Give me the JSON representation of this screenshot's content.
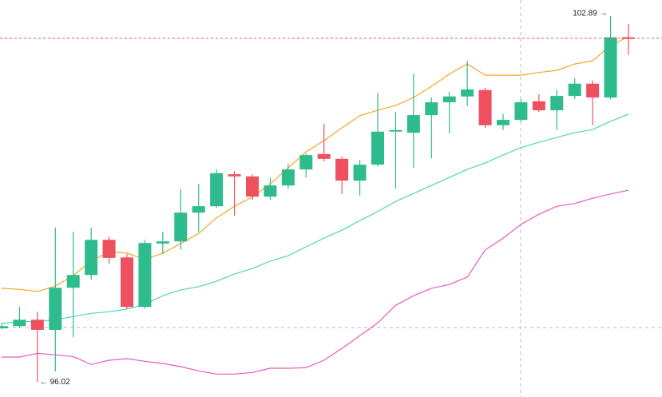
{
  "chart_data": {
    "type": "candlestick",
    "ylim": [
      95.74,
      103.19
    ],
    "up_color": "#2ebb8d",
    "down_color": "#ef5060",
    "open": [
      97.03,
      97.07,
      97.19,
      97.0,
      97.79,
      98.03,
      98.69,
      98.36,
      97.43,
      98.62,
      98.66,
      99.2,
      99.32,
      99.92,
      99.88,
      99.5,
      99.71,
      100.01,
      100.3,
      100.21,
      99.8,
      100.1,
      100.72,
      100.7,
      101.03,
      101.27,
      101.38,
      101.5,
      100.84,
      100.94,
      101.29,
      101.12,
      101.39,
      101.62,
      101.36,
      102.49
    ],
    "high": [
      97.12,
      97.43,
      97.34,
      98.92,
      98.84,
      98.92,
      98.75,
      98.42,
      98.69,
      98.84,
      99.64,
      99.74,
      100.01,
      99.98,
      99.92,
      99.86,
      100.12,
      100.31,
      100.87,
      100.25,
      100.19,
      101.45,
      101.09,
      101.81,
      101.36,
      101.47,
      102.05,
      101.54,
      101.05,
      101.33,
      101.42,
      101.5,
      101.72,
      101.68,
      102.89,
      102.74
    ],
    "low": [
      97.01,
      97.04,
      96.02,
      96.22,
      96.86,
      97.94,
      98.24,
      97.39,
      97.4,
      98.42,
      98.51,
      98.84,
      99.29,
      99.14,
      99.44,
      99.44,
      99.65,
      99.86,
      100.16,
      99.55,
      99.52,
      100.07,
      99.65,
      100.04,
      100.22,
      100.69,
      101.2,
      100.79,
      100.75,
      100.91,
      101.09,
      100.75,
      101.33,
      100.84,
      101.33,
      102.16
    ],
    "close": [
      97.07,
      97.19,
      97.0,
      97.79,
      98.03,
      98.69,
      98.35,
      97.43,
      98.63,
      98.66,
      99.2,
      99.32,
      99.94,
      99.88,
      99.5,
      99.71,
      100.01,
      100.28,
      100.21,
      99.8,
      100.1,
      100.72,
      100.75,
      101.03,
      101.27,
      101.38,
      101.51,
      100.84,
      100.94,
      101.27,
      101.12,
      101.39,
      101.62,
      101.36,
      102.49,
      102.47
    ],
    "overlays": [
      {
        "color": "#f5a623",
        "values": [
          97.78,
          97.76,
          97.72,
          97.82,
          98.02,
          98.29,
          98.47,
          98.44,
          98.32,
          98.44,
          98.62,
          98.81,
          99.1,
          99.32,
          99.49,
          99.74,
          100.04,
          100.34,
          100.55,
          100.79,
          101.02,
          101.12,
          101.21,
          101.36,
          101.57,
          101.8,
          101.99,
          101.78,
          101.78,
          101.78,
          101.83,
          101.87,
          101.99,
          102.05,
          102.34,
          102.5
        ]
      },
      {
        "color": "#4fd6b8",
        "values": [
          97.12,
          97.15,
          97.16,
          97.19,
          97.25,
          97.31,
          97.34,
          97.39,
          97.48,
          97.64,
          97.75,
          97.81,
          97.91,
          98.05,
          98.15,
          98.29,
          98.39,
          98.56,
          98.72,
          98.87,
          99.05,
          99.22,
          99.41,
          99.56,
          99.71,
          99.86,
          100.01,
          100.13,
          100.28,
          100.42,
          100.52,
          100.61,
          100.7,
          100.76,
          100.91,
          101.05
        ]
      },
      {
        "color": "#e45bbd",
        "values": [
          96.49,
          96.49,
          96.56,
          96.53,
          96.5,
          96.35,
          96.43,
          96.46,
          96.41,
          96.37,
          96.31,
          96.23,
          96.17,
          96.17,
          96.2,
          96.28,
          96.28,
          96.29,
          96.43,
          96.65,
          96.89,
          97.13,
          97.46,
          97.64,
          97.78,
          97.85,
          97.99,
          98.5,
          98.72,
          98.98,
          99.17,
          99.32,
          99.37,
          99.47,
          99.55,
          99.62
        ]
      }
    ],
    "last_price_line": true,
    "high_label": {
      "value": 102.89,
      "label": "102.89 →"
    },
    "low_label": {
      "value": 96.02,
      "label": "← 96.02"
    }
  }
}
